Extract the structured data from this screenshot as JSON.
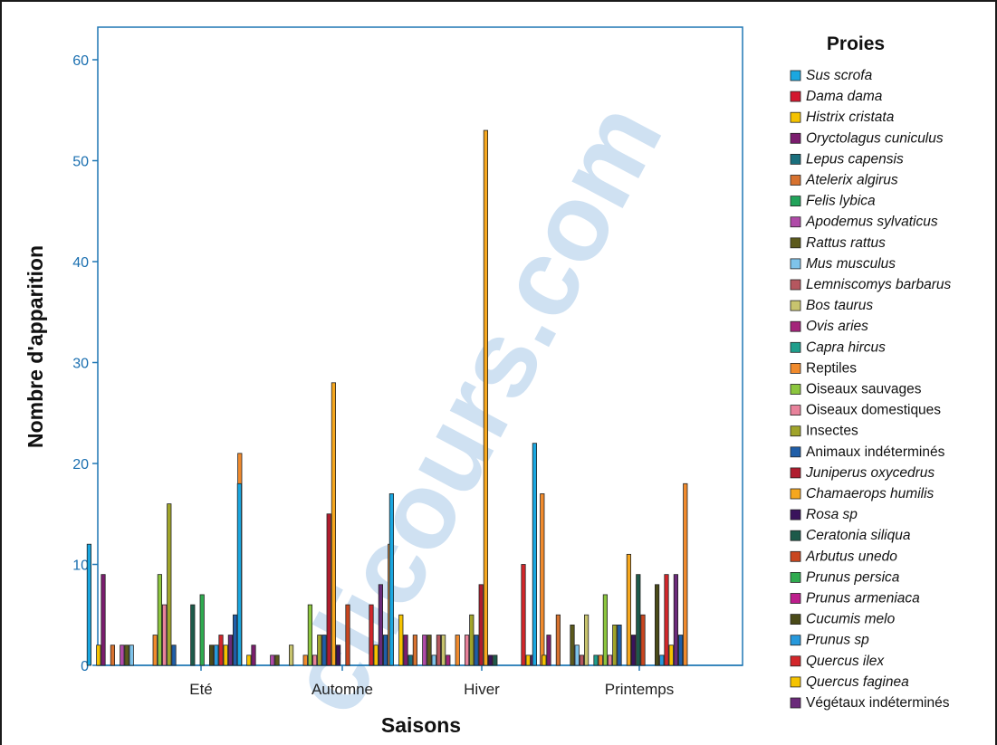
{
  "chart_data": {
    "type": "bar",
    "title": "",
    "xlabel": "Saisons",
    "ylabel": "Nombre d'apparition",
    "ylim": [
      0,
      63
    ],
    "yticks": [
      "0",
      "10",
      "20",
      "30",
      "40",
      "50",
      "60"
    ],
    "categories": [
      "Eté",
      "Automne",
      "Hiver",
      "Printemps"
    ],
    "legend_title": "Proies",
    "legend_position": "right",
    "grid": false,
    "series": [
      {
        "name": "Sus scrofa",
        "italic": true,
        "color": "#1aa7e0",
        "values": [
          12,
          18,
          17,
          22
        ]
      },
      {
        "name": "Dama dama",
        "italic": true,
        "color": "#d3172e",
        "values": [
          0,
          0,
          0,
          0
        ]
      },
      {
        "name": "Histrix cristata",
        "italic": true,
        "color": "#f5c300",
        "values": [
          2,
          1,
          5,
          1
        ]
      },
      {
        "name": "Oryctolagus cuniculus",
        "italic": true,
        "color": "#7b1d6e",
        "values": [
          9,
          2,
          3,
          3
        ]
      },
      {
        "name": "Lepus capensis",
        "italic": true,
        "color": "#1a6f7d",
        "values": [
          0,
          0,
          1,
          0
        ]
      },
      {
        "name": "Atelerix algirus",
        "italic": true,
        "color": "#d7722f",
        "values": [
          2,
          0,
          3,
          5
        ]
      },
      {
        "name": "Felis lybica",
        "italic": true,
        "color": "#21a35a",
        "values": [
          0,
          0,
          0,
          0
        ]
      },
      {
        "name": "Apodemus sylvaticus",
        "italic": true,
        "color": "#b04aa8",
        "values": [
          2,
          1,
          3,
          0
        ]
      },
      {
        "name": "Rattus rattus",
        "italic": true,
        "color": "#5c5a1c",
        "values": [
          2,
          1,
          3,
          4
        ]
      },
      {
        "name": "Mus musculus",
        "italic": true,
        "color": "#7ec3ea",
        "values": [
          2,
          0,
          1,
          2
        ]
      },
      {
        "name": "Lemniscomys barbarus",
        "italic": true,
        "color": "#b5575f",
        "values": [
          0,
          0,
          3,
          1
        ]
      },
      {
        "name": "Bos taurus",
        "italic": true,
        "color": "#c8c46e",
        "values": [
          0,
          2,
          3,
          5
        ]
      },
      {
        "name": "Ovis aries",
        "italic": true,
        "color": "#a4237a",
        "values": [
          0,
          0,
          1,
          0
        ]
      },
      {
        "name": "Capra hircus",
        "italic": true,
        "color": "#1f9e8c",
        "values": [
          0,
          0,
          0,
          1
        ]
      },
      {
        "name": "Reptiles",
        "italic": false,
        "color": "#f08a2c",
        "values": [
          3,
          1,
          3,
          1
        ]
      },
      {
        "name": "Oiseaux sauvages",
        "italic": false,
        "color": "#8cc63e",
        "values": [
          9,
          6,
          0,
          7
        ]
      },
      {
        "name": "Oiseaux domestiques",
        "italic": false,
        "color": "#e8829b",
        "values": [
          6,
          1,
          3,
          1
        ]
      },
      {
        "name": "Insectes",
        "italic": false,
        "color": "#a0a42a",
        "values": [
          16,
          3,
          5,
          4
        ]
      },
      {
        "name": "Animaux indéterminés",
        "italic": false,
        "color": "#1f5ea8",
        "values": [
          2,
          3,
          3,
          4
        ]
      },
      {
        "name": "Juniperus oxycedrus",
        "italic": true,
        "color": "#b01c2e",
        "values": [
          0,
          15,
          8,
          0
        ]
      },
      {
        "name": "Chamaerops humilis",
        "italic": true,
        "color": "#f6a71e",
        "values": [
          0,
          28,
          53,
          11
        ]
      },
      {
        "name": "Rosa sp",
        "italic": true,
        "color": "#3a135c",
        "values": [
          0,
          2,
          1,
          3
        ]
      },
      {
        "name": "Ceratonia siliqua",
        "italic": true,
        "color": "#1d5a4a",
        "values": [
          6,
          0,
          1,
          9
        ]
      },
      {
        "name": "Arbutus unedo",
        "italic": true,
        "color": "#c9461f",
        "values": [
          0,
          6,
          0,
          5
        ]
      },
      {
        "name": "Prunus persica",
        "italic": true,
        "color": "#2faa4f",
        "values": [
          7,
          0,
          0,
          0
        ]
      },
      {
        "name": "Prunus armeniaca",
        "italic": true,
        "color": "#bd1e8c",
        "values": [
          0,
          0,
          0,
          0
        ]
      },
      {
        "name": "Cucumis melo",
        "italic": true,
        "color": "#4a4a18",
        "values": [
          2,
          0,
          0,
          8
        ]
      },
      {
        "name": "Prunus sp",
        "italic": true,
        "color": "#2799dc",
        "values": [
          2,
          0,
          0,
          1
        ]
      },
      {
        "name": "Quercus ilex",
        "italic": true,
        "color": "#d3262a",
        "values": [
          3,
          6,
          10,
          9
        ]
      },
      {
        "name": "Quercus faginea",
        "italic": true,
        "color": "#f5c300",
        "values": [
          2,
          2,
          1,
          2
        ]
      },
      {
        "name": "Végétaux indéterminés",
        "italic": false,
        "color": "#6b2a7a",
        "values": [
          3,
          8,
          1,
          9
        ]
      },
      {
        "name": "",
        "italic": false,
        "color": "#1f5ea8",
        "values": [
          5,
          3,
          0,
          3
        ]
      },
      {
        "name": "",
        "italic": false,
        "color": "#f08a2c",
        "values": [
          21,
          12,
          17,
          18
        ]
      }
    ]
  },
  "watermark": {
    "text": "clicours.com",
    "color": "#a9c9e8"
  }
}
